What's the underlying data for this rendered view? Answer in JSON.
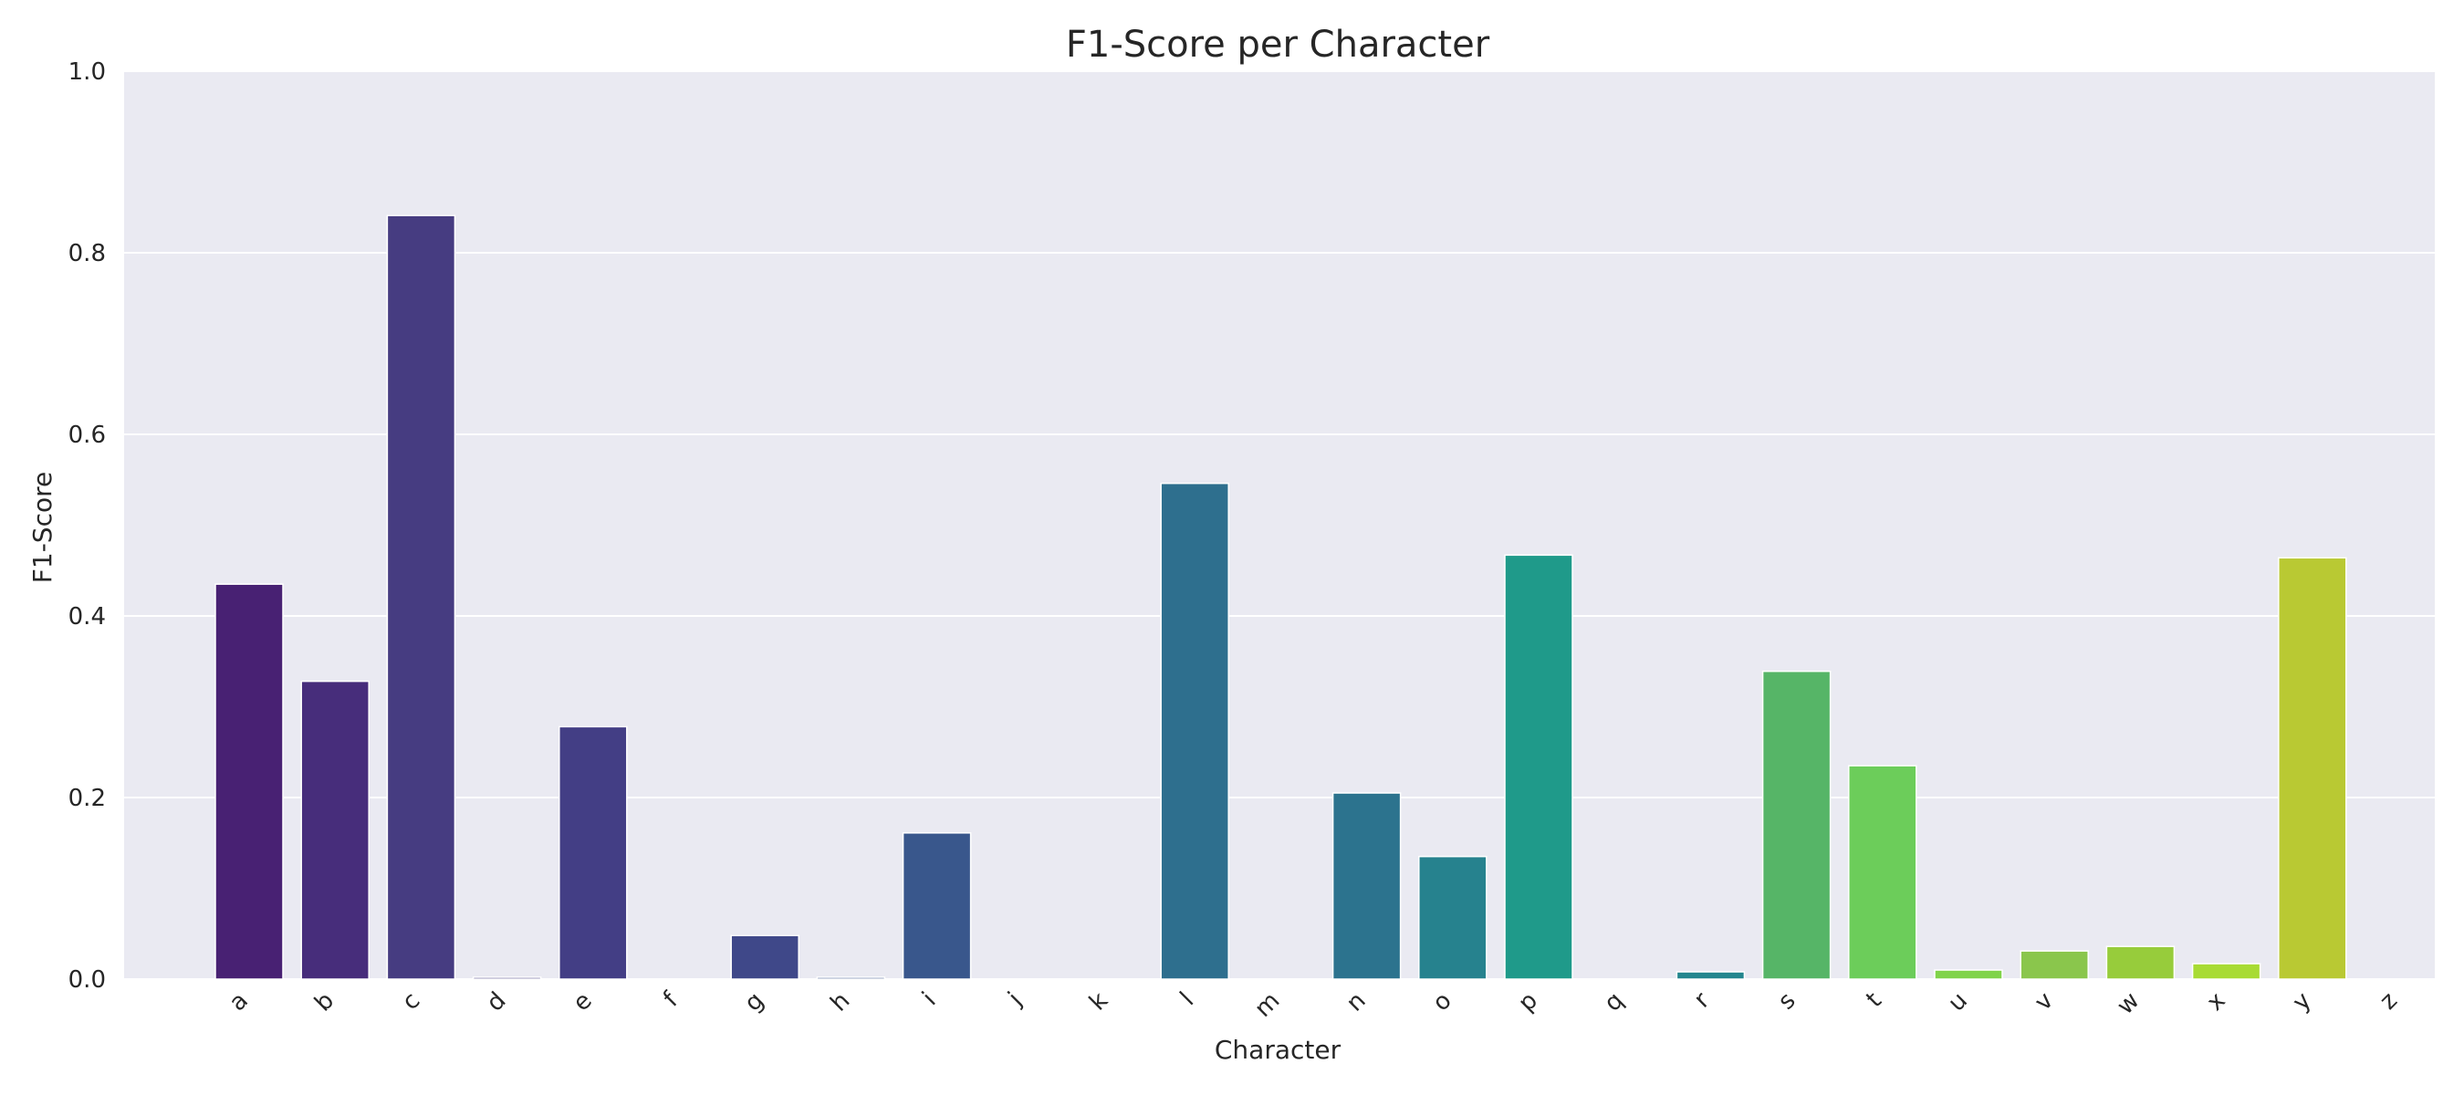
{
  "chart_data": {
    "type": "bar",
    "title": "F1-Score per Character",
    "xlabel": "Character",
    "ylabel": "F1-Score",
    "ylim": [
      0,
      1.0
    ],
    "yticks": [
      "0.0",
      "0.2",
      "0.4",
      "0.6",
      "0.8",
      "1.0"
    ],
    "grid": true,
    "categories": [
      "a",
      "b",
      "c",
      "d",
      "e",
      "f",
      "g",
      "h",
      "i",
      "j",
      "k",
      "l",
      "m",
      "n",
      "o",
      "p",
      "q",
      "r",
      "s",
      "t",
      "u",
      "v",
      "w",
      "x",
      "y",
      "z"
    ],
    "values": [
      0.435,
      0.328,
      0.841,
      0.002,
      0.278,
      0.0,
      0.048,
      0.002,
      0.161,
      0.0,
      0.0,
      0.546,
      0.0,
      0.205,
      0.135,
      0.467,
      0.0,
      0.008,
      0.339,
      0.235,
      0.01,
      0.031,
      0.036,
      0.017,
      0.464,
      0.0
    ],
    "colors": [
      "#482173",
      "#472d7b",
      "#463c81",
      "#463c81",
      "#433e85",
      "#3e4989",
      "#3f4889",
      "#3a548c",
      "#39578c",
      "#355f8d",
      "#31688e",
      "#2e6f8e",
      "#2a788e",
      "#2c738e",
      "#26828e",
      "#1f9a8a",
      "#22a884",
      "#24868e",
      "#56b567",
      "#6ccd5a",
      "#80d34a",
      "#8ac64c",
      "#97cc3b",
      "#a8db34",
      "#b9c933",
      "#d5e21a"
    ]
  }
}
